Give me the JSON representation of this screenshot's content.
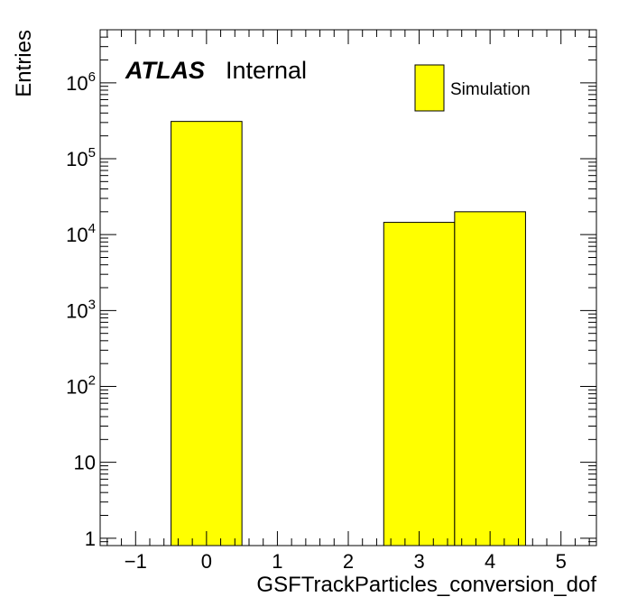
{
  "chart_data": {
    "type": "bar",
    "histogram": true,
    "xlabel": "GSFTrackParticles_conversion_dof",
    "ylabel": "Entries",
    "xlim": [
      -1.5,
      5.5
    ],
    "ylim": [
      0.8,
      5000000
    ],
    "yscale": "log",
    "bins": [
      {
        "x_low": -0.5,
        "x_high": 0.5,
        "value": 310000
      },
      {
        "x_low": 2.5,
        "x_high": 3.5,
        "value": 14500
      },
      {
        "x_low": 3.5,
        "x_high": 4.5,
        "value": 20000
      }
    ],
    "x_ticks": [
      -1,
      0,
      1,
      2,
      3,
      4,
      5
    ],
    "x_tick_labels": [
      "−1",
      "0",
      "1",
      "2",
      "3",
      "4",
      "5"
    ],
    "y_ticks": [
      1,
      10,
      100,
      1000,
      10000,
      100000,
      1000000
    ],
    "y_tick_labels": [
      {
        "base": "1",
        "exp": ""
      },
      {
        "base": "10",
        "exp": ""
      },
      {
        "base": "10",
        "exp": "2"
      },
      {
        "base": "10",
        "exp": "3"
      },
      {
        "base": "10",
        "exp": "4"
      },
      {
        "base": "10",
        "exp": "5"
      },
      {
        "base": "10",
        "exp": "6"
      }
    ],
    "legend": {
      "position": "top-right",
      "entries": [
        {
          "name": "Simulation",
          "color": "#ffff00"
        }
      ]
    },
    "annotation": {
      "bold": "ATLAS",
      "text": "Internal"
    },
    "fill_color": "#ffff00",
    "line_color": "#000000",
    "grid": false
  }
}
